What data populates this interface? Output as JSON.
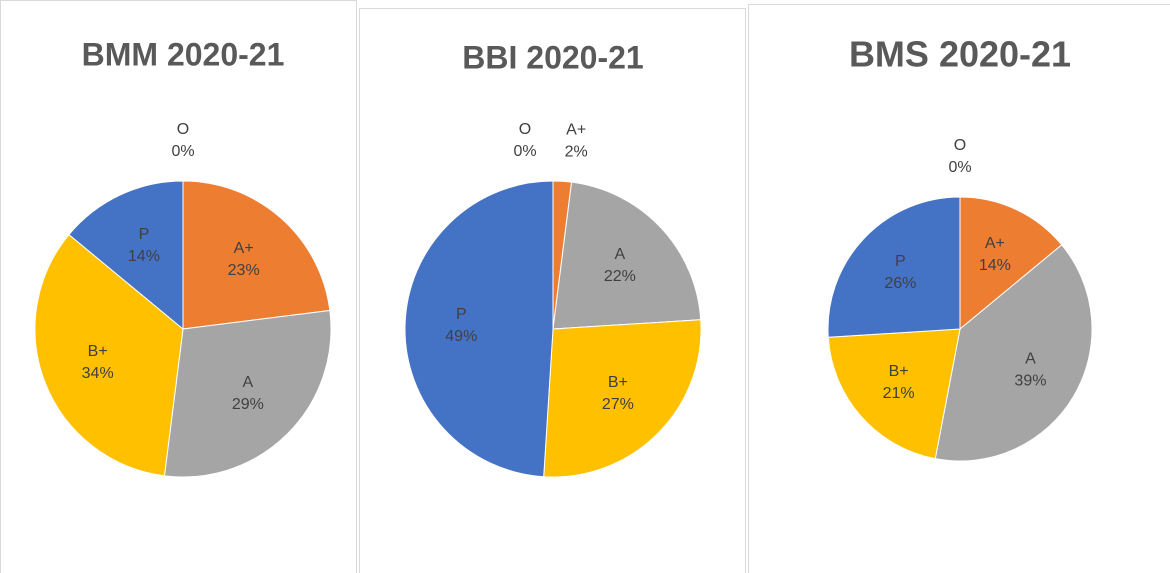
{
  "chart_data": [
    {
      "type": "pie",
      "title": "BMM 2020-21",
      "categories": [
        "O",
        "A+",
        "A",
        "B+",
        "P"
      ],
      "values": [
        0,
        23,
        29,
        34,
        14
      ],
      "value_labels": [
        "0%",
        "23%",
        "29%",
        "34%",
        "14%"
      ],
      "colors": [
        "#5b9bd5",
        "#ed7d31",
        "#a5a5a5",
        "#ffc000",
        "#4472c4"
      ]
    },
    {
      "type": "pie",
      "title": "BBI 2020-21",
      "categories": [
        "O",
        "A+",
        "A",
        "B+",
        "P"
      ],
      "values": [
        0,
        2,
        22,
        27,
        49
      ],
      "value_labels": [
        "0%",
        "2%",
        "22%",
        "27%",
        "49%"
      ],
      "colors": [
        "#5b9bd5",
        "#ed7d31",
        "#a5a5a5",
        "#ffc000",
        "#4472c4"
      ]
    },
    {
      "type": "pie",
      "title": "BMS 2020-21",
      "categories": [
        "O",
        "A+",
        "A",
        "B+",
        "P"
      ],
      "values": [
        0,
        14,
        39,
        21,
        26
      ],
      "value_labels": [
        "0%",
        "14%",
        "39%",
        "21%",
        "26%"
      ],
      "colors": [
        "#5b9bd5",
        "#ed7d31",
        "#a5a5a5",
        "#ffc000",
        "#4472c4"
      ]
    }
  ]
}
